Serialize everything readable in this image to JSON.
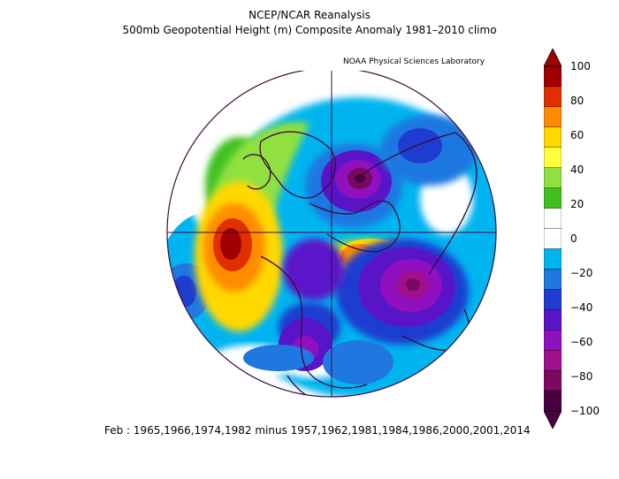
{
  "header": {
    "title": "NCEP/NCAR Reanalysis",
    "subtitle": "500mb Geopotential Height (m) Composite Anomaly 1981–2010 climo",
    "credit": "NOAA Physical Sciences Laboratory"
  },
  "footer": {
    "text": "Feb : 1965,1966,1974,1982 minus 1957,1962,1981,1984,1986,2000,2001,2014"
  },
  "colorbar": {
    "labels": [
      "100",
      "80",
      "60",
      "40",
      "20",
      "0",
      "−20",
      "−40",
      "−60",
      "−80",
      "−100"
    ],
    "colors": [
      "#a00000",
      "#e03000",
      "#ff8c00",
      "#ffd800",
      "#ffff40",
      "#90e040",
      "#40c020",
      "#ffffff",
      "#ffffff",
      "#00b4f0",
      "#1e78e0",
      "#1e3cd0",
      "#5a14c8",
      "#9010c0",
      "#a0108c",
      "#7a0a60",
      "#4a0040"
    ]
  },
  "map": {
    "projection": "polar-stereographic",
    "pole": "north"
  }
}
